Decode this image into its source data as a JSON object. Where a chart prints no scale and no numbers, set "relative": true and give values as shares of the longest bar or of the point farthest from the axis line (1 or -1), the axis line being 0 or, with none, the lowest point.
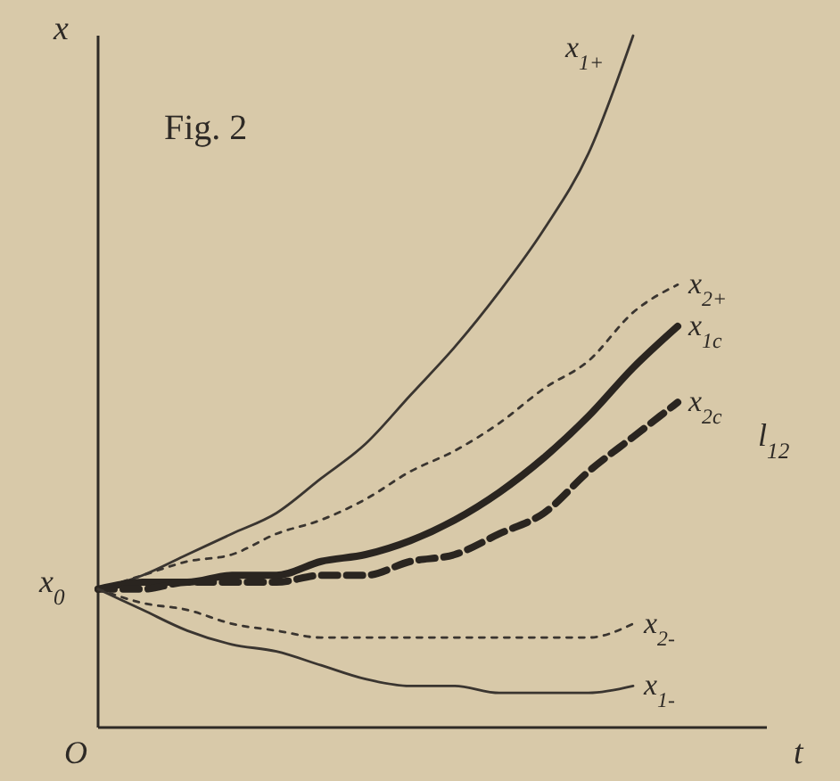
{
  "chart_data": {
    "type": "line",
    "title": "Fig. 2",
    "xlabel": "t",
    "ylabel": "x",
    "relative": true,
    "marker": "none",
    "categories": [
      null,
      null,
      null,
      null,
      null,
      null,
      null,
      null,
      null,
      null,
      null,
      null,
      null,
      null,
      null,
      null
    ],
    "series": [
      {
        "name": "x$_{1+}$",
        "color": "#3a3530",
        "line_style": "solid",
        "values": [
          0.2,
          0.22,
          0.25,
          0.28,
          0.31,
          0.36,
          0.41,
          0.48,
          0.55,
          0.63,
          0.72,
          0.83,
          1.0,
          null,
          null,
          null
        ]
      },
      {
        "name": "x$_{2+}$",
        "color": "#3a3530",
        "line_style": "dotted",
        "values": [
          0.2,
          0.22,
          0.24,
          0.25,
          0.28,
          0.3,
          0.33,
          0.37,
          0.4,
          0.44,
          0.49,
          0.53,
          0.6,
          0.64,
          null,
          null
        ]
      },
      {
        "name": "x$_{1c}$",
        "color": "#2a2520",
        "line_style": "solid",
        "values": [
          0.2,
          0.21,
          0.21,
          0.22,
          0.22,
          0.24,
          0.25,
          0.27,
          0.3,
          0.34,
          0.39,
          0.45,
          0.52,
          0.58,
          null,
          null
        ]
      },
      {
        "name": "x$_{2c}$",
        "color": "#2a2520",
        "line_style": "dashed",
        "values": [
          0.2,
          0.2,
          0.21,
          0.21,
          0.21,
          0.22,
          0.22,
          0.24,
          0.25,
          0.28,
          0.31,
          0.37,
          0.42,
          0.47,
          null,
          null
        ]
      },
      {
        "name": "x$_{2-}$",
        "color": "#3a3530",
        "line_style": "dotted",
        "values": [
          0.2,
          0.18,
          0.17,
          0.15,
          0.14,
          0.13,
          0.13,
          0.13,
          0.13,
          0.13,
          0.13,
          0.13,
          0.15,
          null,
          null,
          null
        ]
      },
      {
        "name": "x$_{1-}$",
        "color": "#3a3530",
        "line_style": "solid",
        "values": [
          0.2,
          0.17,
          0.14,
          0.12,
          0.11,
          0.09,
          0.07,
          0.06,
          0.06,
          0.05,
          0.05,
          0.05,
          0.06,
          null,
          null,
          null
        ]
      }
    ],
    "annotations": [
      "x$_{0}$",
      "O",
      "l$_{12}$"
    ]
  }
}
